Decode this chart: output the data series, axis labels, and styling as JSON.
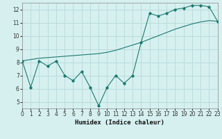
{
  "xlabel": "Humidex (Indice chaleur)",
  "background_color": "#d6f0f0",
  "grid_color": "#b8d8d8",
  "line_color": "#1a7a6e",
  "x_data": [
    0,
    1,
    2,
    3,
    4,
    5,
    6,
    7,
    8,
    9,
    10,
    11,
    12,
    13,
    14,
    15,
    16,
    17,
    18,
    19,
    20,
    21,
    22,
    23
  ],
  "y_jagged": [
    8.1,
    6.1,
    8.1,
    7.7,
    8.1,
    7.0,
    6.6,
    7.3,
    6.1,
    4.7,
    6.1,
    7.0,
    6.4,
    7.0,
    9.5,
    11.7,
    11.5,
    11.7,
    12.0,
    12.1,
    12.3,
    12.3,
    12.2,
    11.1
  ],
  "y_smooth": [
    8.1,
    8.2,
    8.3,
    8.35,
    8.4,
    8.45,
    8.5,
    8.55,
    8.6,
    8.65,
    8.75,
    8.9,
    9.1,
    9.3,
    9.5,
    9.75,
    10.0,
    10.25,
    10.5,
    10.7,
    10.9,
    11.05,
    11.15,
    11.1
  ],
  "xlim": [
    0,
    23
  ],
  "ylim": [
    4.5,
    12.5
  ],
  "yticks": [
    5,
    6,
    7,
    8,
    9,
    10,
    11,
    12
  ],
  "xticks": [
    0,
    1,
    2,
    3,
    4,
    5,
    6,
    7,
    8,
    9,
    10,
    11,
    12,
    13,
    14,
    15,
    16,
    17,
    18,
    19,
    20,
    21,
    22,
    23
  ],
  "tick_fontsize": 5.5,
  "xlabel_fontsize": 6.5
}
